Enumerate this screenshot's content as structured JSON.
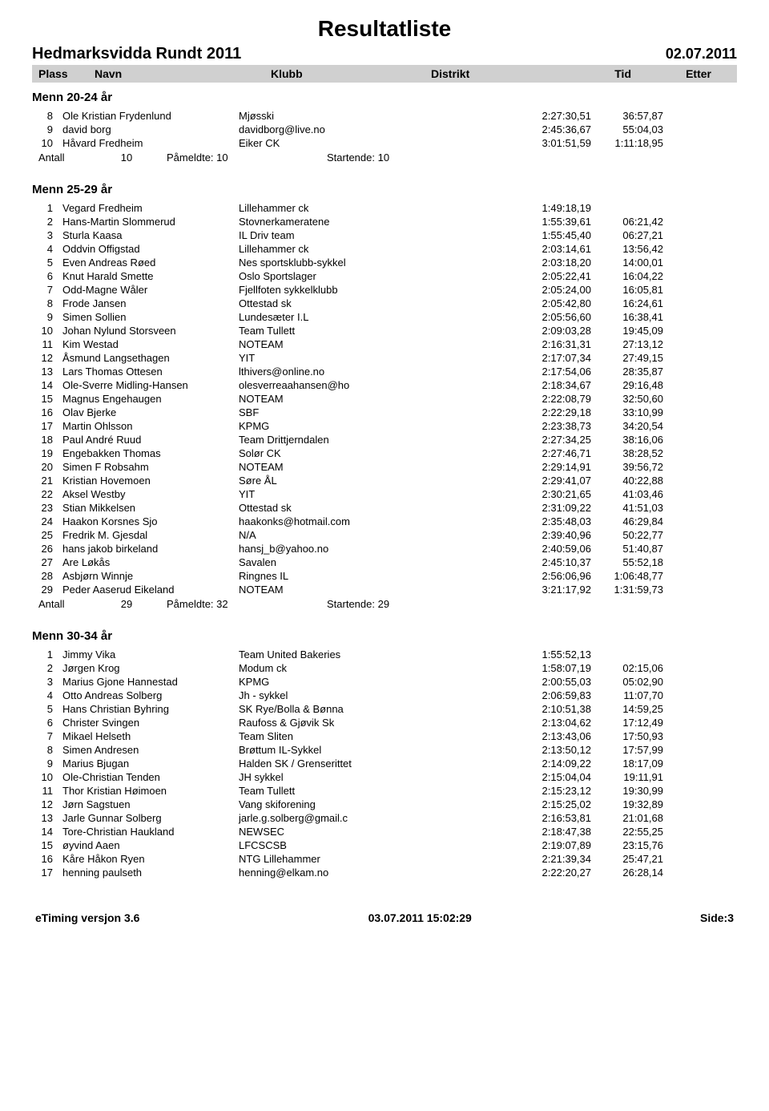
{
  "doc_title": "Resultatliste",
  "event_title": "Hedmarksvidda Rundt 2011",
  "event_date": "02.07.2011",
  "columns": {
    "plass": "Plass",
    "navn": "Navn",
    "klubb": "Klubb",
    "distrikt": "Distrikt",
    "tid": "Tid",
    "etter": "Etter"
  },
  "categories": [
    {
      "title": "Menn 20-24 år",
      "rows": [
        {
          "plass": "8",
          "navn": "Ole Kristian Frydenlund",
          "klubb": "Mjøsski",
          "tid": "2:27:30,51",
          "etter": "36:57,87"
        },
        {
          "plass": "9",
          "navn": "david borg",
          "klubb": "davidborg@live.no",
          "tid": "2:45:36,67",
          "etter": "55:04,03"
        },
        {
          "plass": "10",
          "navn": "Håvard Fredheim",
          "klubb": "Eiker CK",
          "tid": "3:01:51,59",
          "etter": "1:11:18,95"
        }
      ],
      "summary": {
        "label": "Antall",
        "total": "10",
        "pameldte": "Påmeldte: 10",
        "startende": "Startende: 10"
      }
    },
    {
      "title": "Menn 25-29 år",
      "rows": [
        {
          "plass": "1",
          "navn": "Vegard Fredheim",
          "klubb": "Lillehammer ck",
          "tid": "1:49:18,19",
          "etter": ""
        },
        {
          "plass": "2",
          "navn": "Hans-Martin Slommerud",
          "klubb": "Stovnerkameratene",
          "tid": "1:55:39,61",
          "etter": "06:21,42"
        },
        {
          "plass": "3",
          "navn": "Sturla Kaasa",
          "klubb": "IL Driv team",
          "tid": "1:55:45,40",
          "etter": "06:27,21"
        },
        {
          "plass": "4",
          "navn": "Oddvin Offigstad",
          "klubb": "Lillehammer ck",
          "tid": "2:03:14,61",
          "etter": "13:56,42"
        },
        {
          "plass": "5",
          "navn": "Even Andreas Røed",
          "klubb": "Nes sportsklubb-sykkel",
          "tid": "2:03:18,20",
          "etter": "14:00,01"
        },
        {
          "plass": "6",
          "navn": "Knut Harald Smette",
          "klubb": "Oslo Sportslager",
          "tid": "2:05:22,41",
          "etter": "16:04,22"
        },
        {
          "plass": "7",
          "navn": "Odd-Magne Wåler",
          "klubb": "Fjellfoten sykkelklubb",
          "tid": "2:05:24,00",
          "etter": "16:05,81"
        },
        {
          "plass": "8",
          "navn": "Frode Jansen",
          "klubb": "Ottestad sk",
          "tid": "2:05:42,80",
          "etter": "16:24,61"
        },
        {
          "plass": "9",
          "navn": "Simen Sollien",
          "klubb": "Lundesæter I.L",
          "tid": "2:05:56,60",
          "etter": "16:38,41"
        },
        {
          "plass": "10",
          "navn": "Johan Nylund Storsveen",
          "klubb": "Team Tullett",
          "tid": "2:09:03,28",
          "etter": "19:45,09"
        },
        {
          "plass": "11",
          "navn": "Kim Westad",
          "klubb": "NOTEAM",
          "tid": "2:16:31,31",
          "etter": "27:13,12"
        },
        {
          "plass": "12",
          "navn": "Åsmund Langsethagen",
          "klubb": "YIT",
          "tid": "2:17:07,34",
          "etter": "27:49,15"
        },
        {
          "plass": "13",
          "navn": "Lars Thomas Ottesen",
          "klubb": "lthivers@online.no",
          "tid": "2:17:54,06",
          "etter": "28:35,87"
        },
        {
          "plass": "14",
          "navn": "Ole-Sverre Midling-Hansen",
          "klubb": "olesverreaahansen@ho",
          "tid": "2:18:34,67",
          "etter": "29:16,48"
        },
        {
          "plass": "15",
          "navn": "Magnus Engehaugen",
          "klubb": "NOTEAM",
          "tid": "2:22:08,79",
          "etter": "32:50,60"
        },
        {
          "plass": "16",
          "navn": "Olav Bjerke",
          "klubb": "SBF",
          "tid": "2:22:29,18",
          "etter": "33:10,99"
        },
        {
          "plass": "17",
          "navn": "Martin Ohlsson",
          "klubb": "KPMG",
          "tid": "2:23:38,73",
          "etter": "34:20,54"
        },
        {
          "plass": "18",
          "navn": "Paul André Ruud",
          "klubb": "Team Drittjerndalen",
          "tid": "2:27:34,25",
          "etter": "38:16,06"
        },
        {
          "plass": "19",
          "navn": "Engebakken Thomas",
          "klubb": "Solør CK",
          "tid": "2:27:46,71",
          "etter": "38:28,52"
        },
        {
          "plass": "20",
          "navn": "Simen F Robsahm",
          "klubb": "NOTEAM",
          "tid": "2:29:14,91",
          "etter": "39:56,72"
        },
        {
          "plass": "21",
          "navn": "Kristian Hovemoen",
          "klubb": "Søre ÅL",
          "tid": "2:29:41,07",
          "etter": "40:22,88"
        },
        {
          "plass": "22",
          "navn": "Aksel Westby",
          "klubb": "YIT",
          "tid": "2:30:21,65",
          "etter": "41:03,46"
        },
        {
          "plass": "23",
          "navn": "Stian Mikkelsen",
          "klubb": "Ottestad sk",
          "tid": "2:31:09,22",
          "etter": "41:51,03"
        },
        {
          "plass": "24",
          "navn": "Haakon Korsnes Sjo",
          "klubb": "haakonks@hotmail.com",
          "tid": "2:35:48,03",
          "etter": "46:29,84"
        },
        {
          "plass": "25",
          "navn": "Fredrik M. Gjesdal",
          "klubb": "N/A",
          "tid": "2:39:40,96",
          "etter": "50:22,77"
        },
        {
          "plass": "26",
          "navn": "hans jakob birkeland",
          "klubb": "hansj_b@yahoo.no",
          "tid": "2:40:59,06",
          "etter": "51:40,87"
        },
        {
          "plass": "27",
          "navn": "Are Løkås",
          "klubb": "Savalen",
          "tid": "2:45:10,37",
          "etter": "55:52,18"
        },
        {
          "plass": "28",
          "navn": "Asbjørn Winnje",
          "klubb": "Ringnes IL",
          "tid": "2:56:06,96",
          "etter": "1:06:48,77"
        },
        {
          "plass": "29",
          "navn": "Peder Aaserud Eikeland",
          "klubb": "NOTEAM",
          "tid": "3:21:17,92",
          "etter": "1:31:59,73"
        }
      ],
      "summary": {
        "label": "Antall",
        "total": "29",
        "pameldte": "Påmeldte: 32",
        "startende": "Startende: 29"
      }
    },
    {
      "title": "Menn 30-34 år",
      "rows": [
        {
          "plass": "1",
          "navn": "Jimmy Vika",
          "klubb": "Team United Bakeries",
          "tid": "1:55:52,13",
          "etter": ""
        },
        {
          "plass": "2",
          "navn": "Jørgen Krog",
          "klubb": "Modum ck",
          "tid": "1:58:07,19",
          "etter": "02:15,06"
        },
        {
          "plass": "3",
          "navn": "Marius Gjone Hannestad",
          "klubb": "KPMG",
          "tid": "2:00:55,03",
          "etter": "05:02,90"
        },
        {
          "plass": "4",
          "navn": "Otto Andreas Solberg",
          "klubb": "Jh - sykkel",
          "tid": "2:06:59,83",
          "etter": "11:07,70"
        },
        {
          "plass": "5",
          "navn": "Hans Christian Byhring",
          "klubb": "SK Rye/Bolla & Bønna",
          "tid": "2:10:51,38",
          "etter": "14:59,25"
        },
        {
          "plass": "6",
          "navn": "Christer Svingen",
          "klubb": "Raufoss & Gjøvik Sk",
          "tid": "2:13:04,62",
          "etter": "17:12,49"
        },
        {
          "plass": "7",
          "navn": "Mikael Helseth",
          "klubb": "Team Sliten",
          "tid": "2:13:43,06",
          "etter": "17:50,93"
        },
        {
          "plass": "8",
          "navn": "Simen Andresen",
          "klubb": "Brøttum IL-Sykkel",
          "tid": "2:13:50,12",
          "etter": "17:57,99"
        },
        {
          "plass": "9",
          "navn": "Marius Bjugan",
          "klubb": "Halden SK / Grenserittet",
          "tid": "2:14:09,22",
          "etter": "18:17,09"
        },
        {
          "plass": "10",
          "navn": "Ole-Christian Tenden",
          "klubb": "JH sykkel",
          "tid": "2:15:04,04",
          "etter": "19:11,91"
        },
        {
          "plass": "11",
          "navn": "Thor Kristian Høimoen",
          "klubb": "Team Tullett",
          "tid": "2:15:23,12",
          "etter": "19:30,99"
        },
        {
          "plass": "12",
          "navn": "Jørn Sagstuen",
          "klubb": "Vang skiforening",
          "tid": "2:15:25,02",
          "etter": "19:32,89"
        },
        {
          "plass": "13",
          "navn": "Jarle Gunnar Solberg",
          "klubb": "jarle.g.solberg@gmail.c",
          "tid": "2:16:53,81",
          "etter": "21:01,68"
        },
        {
          "plass": "14",
          "navn": "Tore-Christian Haukland",
          "klubb": "NEWSEC",
          "tid": "2:18:47,38",
          "etter": "22:55,25"
        },
        {
          "plass": "15",
          "navn": "øyvind Aaen",
          "klubb": "LFCSCSB",
          "tid": "2:19:07,89",
          "etter": "23:15,76"
        },
        {
          "plass": "16",
          "navn": "Kåre Håkon Ryen",
          "klubb": "NTG Lillehammer",
          "tid": "2:21:39,34",
          "etter": "25:47,21"
        },
        {
          "plass": "17",
          "navn": "henning paulseth",
          "klubb": "henning@elkam.no",
          "tid": "2:22:20,27",
          "etter": "26:28,14"
        }
      ]
    }
  ],
  "footer": {
    "left": "eTiming versjon 3.6",
    "center": "03.07.2011 15:02:29",
    "right": "Side:3"
  }
}
